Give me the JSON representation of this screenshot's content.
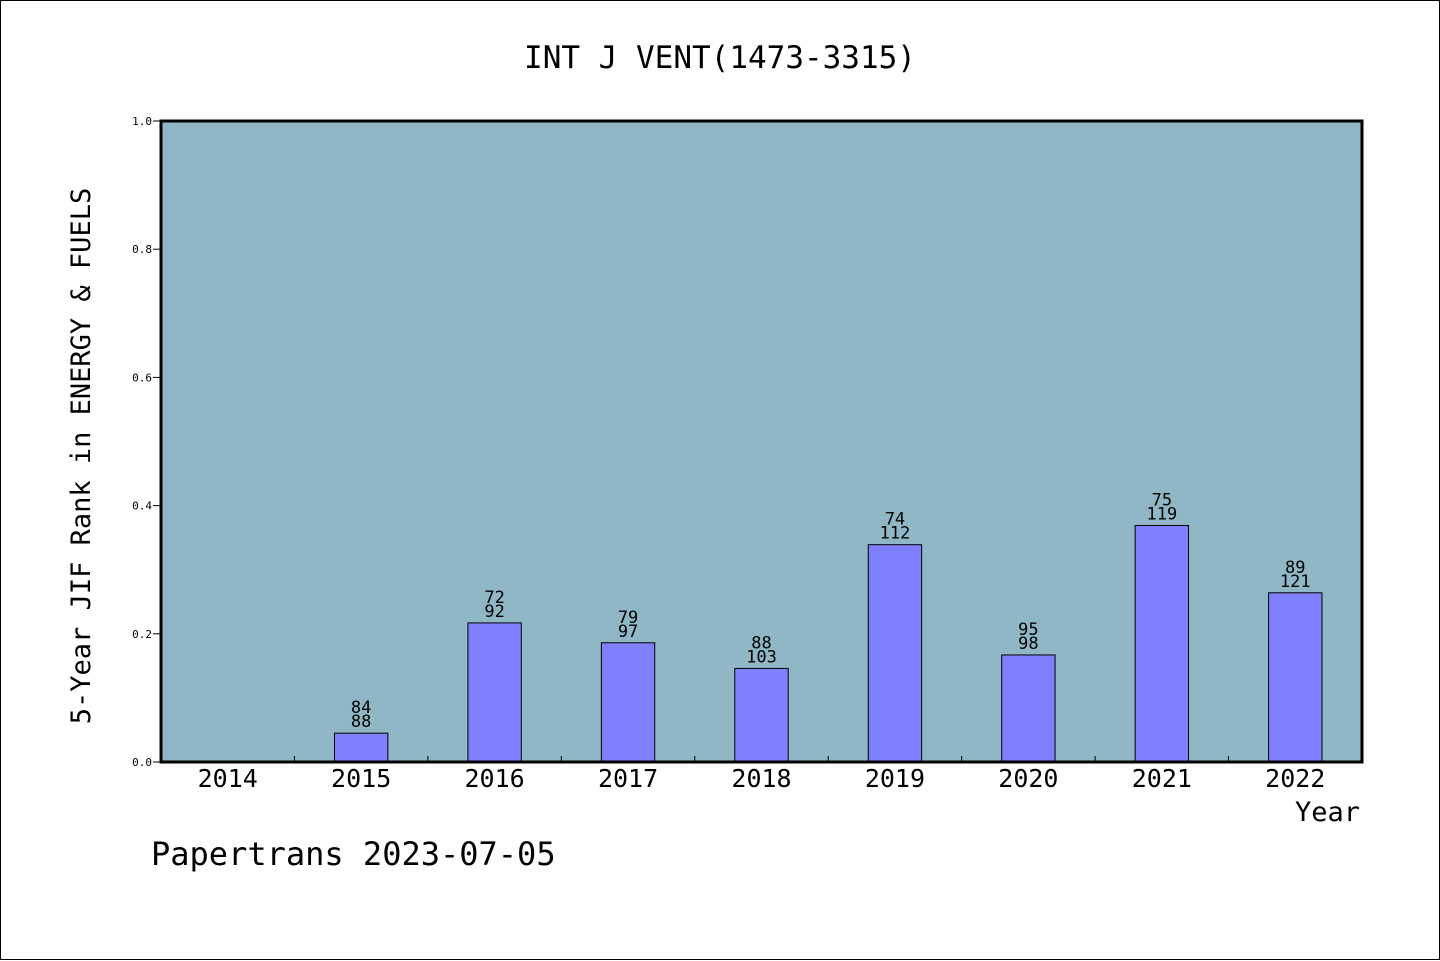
{
  "chart_data": {
    "type": "bar",
    "title": "INT J VENT(1473-3315)",
    "xlabel": "Year",
    "ylabel": "5-Year JIF Rank in ENERGY & FUELS",
    "footer": "Papertrans 2023-07-05",
    "ylim": [
      0.0,
      1.0
    ],
    "yticks": [
      "0.0",
      "0.2",
      "0.4",
      "0.6",
      "0.8",
      "1.0"
    ],
    "categories": [
      "2014",
      "2015",
      "2016",
      "2017",
      "2018",
      "2019",
      "2020",
      "2021",
      "2022"
    ],
    "values": [
      null,
      0.045,
      0.217,
      0.186,
      0.146,
      0.339,
      0.167,
      0.369,
      0.264
    ],
    "label_top": [
      "",
      "84",
      "72",
      "79",
      "88",
      "74",
      "95",
      "75",
      "89"
    ],
    "label_bottom": [
      "",
      "88",
      "92",
      "97",
      "103",
      "112",
      "98",
      "119",
      "121"
    ],
    "grid": false,
    "colors": {
      "plot_background": "#8fb7c5",
      "bar_fill": "#8080ff",
      "bar_edge": "#000000"
    }
  }
}
